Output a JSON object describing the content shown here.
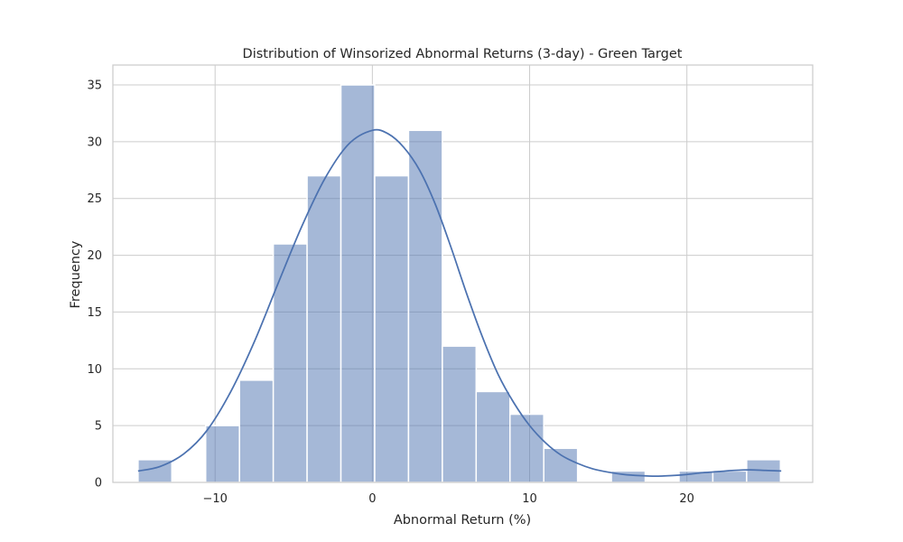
{
  "chart_data": {
    "type": "bar",
    "title": "Distribution of Winsorized Abnormal Returns (3-day) - Green Target",
    "xlabel": "Abnormal Return (%)",
    "ylabel": "Frequency",
    "xlim": [
      -16.5,
      28.0
    ],
    "ylim": [
      0,
      36.75
    ],
    "x_ticks": [
      -10,
      0,
      10,
      20
    ],
    "x_tick_labels": [
      "−10",
      "0",
      "10",
      "20"
    ],
    "y_ticks": [
      0,
      5,
      10,
      15,
      20,
      25,
      30,
      35
    ],
    "y_tick_labels": [
      "0",
      "5",
      "10",
      "15",
      "20",
      "25",
      "30",
      "35"
    ],
    "grid": true,
    "bar_color": "#4c72b0",
    "bar_opacity": 0.5,
    "kde_color": "#4c72b0",
    "bins": [
      {
        "start": -14.9,
        "end": -12.75,
        "count": 2
      },
      {
        "start": -12.75,
        "end": -10.6,
        "count": 0
      },
      {
        "start": -10.6,
        "end": -8.45,
        "count": 5
      },
      {
        "start": -8.45,
        "end": -6.3,
        "count": 9
      },
      {
        "start": -6.3,
        "end": -4.15,
        "count": 21
      },
      {
        "start": -4.15,
        "end": -2.0,
        "count": 27
      },
      {
        "start": -2.0,
        "end": 0.15,
        "count": 35
      },
      {
        "start": 0.15,
        "end": 2.3,
        "count": 27
      },
      {
        "start": 2.3,
        "end": 4.45,
        "count": 31
      },
      {
        "start": 4.45,
        "end": 6.6,
        "count": 12
      },
      {
        "start": 6.6,
        "end": 8.75,
        "count": 8
      },
      {
        "start": 8.75,
        "end": 10.9,
        "count": 6
      },
      {
        "start": 10.9,
        "end": 13.05,
        "count": 3
      },
      {
        "start": 13.05,
        "end": 15.2,
        "count": 0
      },
      {
        "start": 15.2,
        "end": 17.35,
        "count": 1
      },
      {
        "start": 17.35,
        "end": 19.5,
        "count": 0
      },
      {
        "start": 19.5,
        "end": 21.65,
        "count": 1
      },
      {
        "start": 21.65,
        "end": 23.8,
        "count": 1
      },
      {
        "start": 23.8,
        "end": 25.95,
        "count": 2
      }
    ],
    "kde": {
      "x": [
        -14.9,
        -13.5,
        -12,
        -10.5,
        -9,
        -7.5,
        -6,
        -4.5,
        -3,
        -1.5,
        0,
        1,
        2,
        3,
        4,
        5,
        6,
        7,
        8,
        9,
        10,
        11,
        12,
        13,
        14,
        15,
        16,
        17,
        18,
        19,
        20,
        21,
        22,
        23,
        24,
        25,
        26
      ],
      "y": [
        1.0,
        1.4,
        2.5,
        4.6,
        8.0,
        12.4,
        17.5,
        22.5,
        26.8,
        29.8,
        31.0,
        30.7,
        29.5,
        27.5,
        24.5,
        20.7,
        16.6,
        12.8,
        9.5,
        7.0,
        5.0,
        3.5,
        2.4,
        1.7,
        1.2,
        0.9,
        0.7,
        0.6,
        0.55,
        0.6,
        0.7,
        0.85,
        0.95,
        1.05,
        1.1,
        1.05,
        1.0
      ]
    }
  }
}
